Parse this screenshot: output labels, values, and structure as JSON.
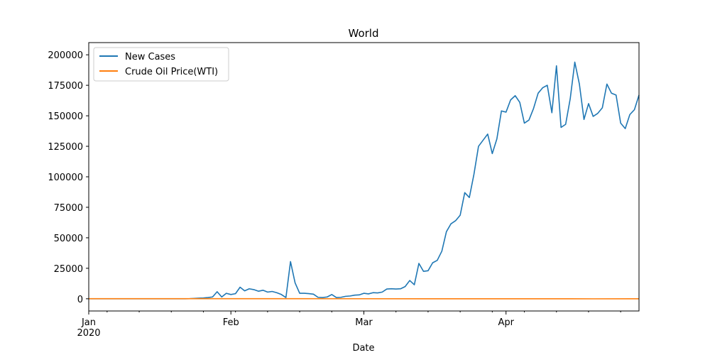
{
  "chart_data": {
    "type": "line",
    "title": "World",
    "xlabel": "Date",
    "ylabel": "",
    "x_ticks": [
      {
        "date": "2020-01-01",
        "label": "Jan",
        "sublabel": "2020"
      },
      {
        "date": "2020-02-01",
        "label": "Feb",
        "sublabel": ""
      },
      {
        "date": "2020-03-01",
        "label": "Mar",
        "sublabel": ""
      },
      {
        "date": "2020-04-01",
        "label": "Apr",
        "sublabel": ""
      }
    ],
    "xlim": [
      "2020-01-01",
      "2020-04-30"
    ],
    "ylim": [
      -10000,
      210000
    ],
    "y_ticks": [
      0,
      25000,
      50000,
      75000,
      100000,
      125000,
      150000,
      175000,
      200000
    ],
    "legend_position": "top-left",
    "grid": false,
    "series": [
      {
        "name": "New Cases",
        "color": "#1f77b4",
        "points": [
          [
            "2020-01-01",
            0
          ],
          [
            "2020-01-22",
            0
          ],
          [
            "2020-01-23",
            100
          ],
          [
            "2020-01-24",
            300
          ],
          [
            "2020-01-25",
            500
          ],
          [
            "2020-01-26",
            700
          ],
          [
            "2020-01-27",
            1000
          ],
          [
            "2020-01-28",
            1500
          ],
          [
            "2020-01-29",
            5800
          ],
          [
            "2020-01-30",
            1500
          ],
          [
            "2020-01-31",
            4500
          ],
          [
            "2020-02-01",
            3500
          ],
          [
            "2020-02-02",
            4200
          ],
          [
            "2020-02-03",
            9500
          ],
          [
            "2020-02-04",
            6500
          ],
          [
            "2020-02-05",
            8200
          ],
          [
            "2020-02-06",
            7500
          ],
          [
            "2020-02-07",
            6200
          ],
          [
            "2020-02-08",
            7000
          ],
          [
            "2020-02-09",
            5500
          ],
          [
            "2020-02-10",
            6000
          ],
          [
            "2020-02-11",
            5000
          ],
          [
            "2020-02-12",
            3500
          ],
          [
            "2020-02-13",
            1000
          ],
          [
            "2020-02-14",
            30500
          ],
          [
            "2020-02-15",
            13000
          ],
          [
            "2020-02-16",
            4500
          ],
          [
            "2020-02-17",
            4500
          ],
          [
            "2020-02-18",
            4200
          ],
          [
            "2020-02-19",
            3800
          ],
          [
            "2020-02-20",
            1200
          ],
          [
            "2020-02-21",
            1000
          ],
          [
            "2020-02-22",
            1500
          ],
          [
            "2020-02-23",
            3500
          ],
          [
            "2020-02-24",
            1000
          ],
          [
            "2020-02-25",
            1200
          ],
          [
            "2020-02-26",
            2000
          ],
          [
            "2020-02-27",
            2300
          ],
          [
            "2020-02-28",
            3000
          ],
          [
            "2020-02-29",
            3200
          ],
          [
            "2020-03-01",
            4500
          ],
          [
            "2020-03-02",
            4000
          ],
          [
            "2020-03-03",
            5000
          ],
          [
            "2020-03-04",
            4800
          ],
          [
            "2020-03-05",
            5500
          ],
          [
            "2020-03-06",
            8000
          ],
          [
            "2020-03-07",
            8200
          ],
          [
            "2020-03-08",
            8000
          ],
          [
            "2020-03-09",
            8200
          ],
          [
            "2020-03-10",
            10000
          ],
          [
            "2020-03-11",
            15000
          ],
          [
            "2020-03-12",
            11500
          ],
          [
            "2020-03-13",
            29000
          ],
          [
            "2020-03-14",
            22500
          ],
          [
            "2020-03-15",
            23000
          ],
          [
            "2020-03-16",
            29500
          ],
          [
            "2020-03-17",
            31500
          ],
          [
            "2020-03-18",
            39000
          ],
          [
            "2020-03-19",
            55000
          ],
          [
            "2020-03-20",
            61500
          ],
          [
            "2020-03-21",
            64000
          ],
          [
            "2020-03-22",
            68500
          ],
          [
            "2020-03-23",
            87000
          ],
          [
            "2020-03-24",
            83000
          ],
          [
            "2020-03-25",
            102000
          ],
          [
            "2020-03-26",
            125000
          ],
          [
            "2020-03-27",
            130000
          ],
          [
            "2020-03-28",
            135000
          ],
          [
            "2020-03-29",
            119000
          ],
          [
            "2020-03-30",
            131000
          ],
          [
            "2020-03-31",
            154000
          ],
          [
            "2020-04-01",
            153000
          ],
          [
            "2020-04-02",
            163000
          ],
          [
            "2020-04-03",
            166500
          ],
          [
            "2020-04-04",
            161000
          ],
          [
            "2020-04-05",
            144000
          ],
          [
            "2020-04-06",
            146500
          ],
          [
            "2020-04-07",
            156000
          ],
          [
            "2020-04-08",
            168500
          ],
          [
            "2020-04-09",
            173000
          ],
          [
            "2020-04-10",
            175000
          ],
          [
            "2020-04-11",
            152500
          ],
          [
            "2020-04-12",
            191000
          ],
          [
            "2020-04-13",
            140500
          ],
          [
            "2020-04-14",
            143000
          ],
          [
            "2020-04-15",
            164000
          ],
          [
            "2020-04-16",
            194000
          ],
          [
            "2020-04-17",
            176000
          ],
          [
            "2020-04-18",
            147000
          ],
          [
            "2020-04-19",
            160000
          ],
          [
            "2020-04-20",
            149500
          ],
          [
            "2020-04-21",
            152000
          ],
          [
            "2020-04-22",
            156500
          ],
          [
            "2020-04-23",
            176000
          ],
          [
            "2020-04-24",
            168500
          ],
          [
            "2020-04-25",
            167000
          ],
          [
            "2020-04-26",
            144000
          ],
          [
            "2020-04-27",
            139500
          ],
          [
            "2020-04-28",
            151000
          ],
          [
            "2020-04-29",
            155000
          ],
          [
            "2020-04-30",
            167000
          ]
        ]
      },
      {
        "name": "Crude Oil Price(WTI)",
        "color": "#ff7f0e",
        "points": [
          [
            "2020-01-01",
            61
          ],
          [
            "2020-01-15",
            58
          ],
          [
            "2020-02-01",
            51
          ],
          [
            "2020-02-15",
            52
          ],
          [
            "2020-03-01",
            45
          ],
          [
            "2020-03-15",
            30
          ],
          [
            "2020-04-01",
            20
          ],
          [
            "2020-04-15",
            19
          ],
          [
            "2020-04-20",
            -37
          ],
          [
            "2020-04-30",
            19
          ]
        ]
      }
    ]
  }
}
